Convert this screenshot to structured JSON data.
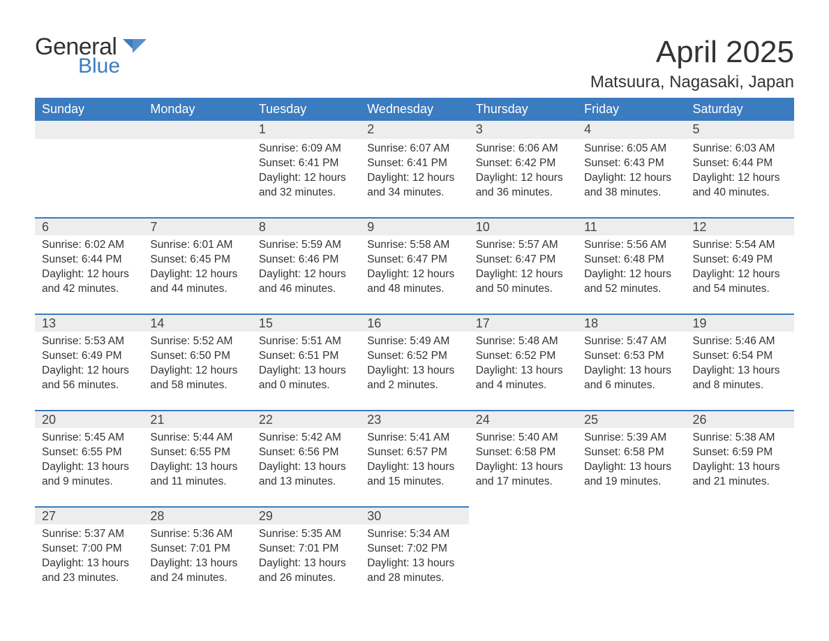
{
  "logo": {
    "general": "General",
    "blue": "Blue",
    "chevron_color": "#3b7bbf"
  },
  "title": "April 2025",
  "location": "Matsuura, Nagasaki, Japan",
  "colors": {
    "header_bg": "#3b7bbf",
    "header_text": "#ffffff",
    "daynum_bg": "#ededed",
    "daynum_border": "#3b7bbf",
    "body_bg": "#ffffff",
    "text": "#333333"
  },
  "weekdays": [
    "Sunday",
    "Monday",
    "Tuesday",
    "Wednesday",
    "Thursday",
    "Friday",
    "Saturday"
  ],
  "weeks": [
    [
      {
        "day": "",
        "sunrise": "",
        "sunset": "",
        "daylight": ""
      },
      {
        "day": "",
        "sunrise": "",
        "sunset": "",
        "daylight": ""
      },
      {
        "day": "1",
        "sunrise": "Sunrise: 6:09 AM",
        "sunset": "Sunset: 6:41 PM",
        "daylight": "Daylight: 12 hours and 32 minutes."
      },
      {
        "day": "2",
        "sunrise": "Sunrise: 6:07 AM",
        "sunset": "Sunset: 6:41 PM",
        "daylight": "Daylight: 12 hours and 34 minutes."
      },
      {
        "day": "3",
        "sunrise": "Sunrise: 6:06 AM",
        "sunset": "Sunset: 6:42 PM",
        "daylight": "Daylight: 12 hours and 36 minutes."
      },
      {
        "day": "4",
        "sunrise": "Sunrise: 6:05 AM",
        "sunset": "Sunset: 6:43 PM",
        "daylight": "Daylight: 12 hours and 38 minutes."
      },
      {
        "day": "5",
        "sunrise": "Sunrise: 6:03 AM",
        "sunset": "Sunset: 6:44 PM",
        "daylight": "Daylight: 12 hours and 40 minutes."
      }
    ],
    [
      {
        "day": "6",
        "sunrise": "Sunrise: 6:02 AM",
        "sunset": "Sunset: 6:44 PM",
        "daylight": "Daylight: 12 hours and 42 minutes."
      },
      {
        "day": "7",
        "sunrise": "Sunrise: 6:01 AM",
        "sunset": "Sunset: 6:45 PM",
        "daylight": "Daylight: 12 hours and 44 minutes."
      },
      {
        "day": "8",
        "sunrise": "Sunrise: 5:59 AM",
        "sunset": "Sunset: 6:46 PM",
        "daylight": "Daylight: 12 hours and 46 minutes."
      },
      {
        "day": "9",
        "sunrise": "Sunrise: 5:58 AM",
        "sunset": "Sunset: 6:47 PM",
        "daylight": "Daylight: 12 hours and 48 minutes."
      },
      {
        "day": "10",
        "sunrise": "Sunrise: 5:57 AM",
        "sunset": "Sunset: 6:47 PM",
        "daylight": "Daylight: 12 hours and 50 minutes."
      },
      {
        "day": "11",
        "sunrise": "Sunrise: 5:56 AM",
        "sunset": "Sunset: 6:48 PM",
        "daylight": "Daylight: 12 hours and 52 minutes."
      },
      {
        "day": "12",
        "sunrise": "Sunrise: 5:54 AM",
        "sunset": "Sunset: 6:49 PM",
        "daylight": "Daylight: 12 hours and 54 minutes."
      }
    ],
    [
      {
        "day": "13",
        "sunrise": "Sunrise: 5:53 AM",
        "sunset": "Sunset: 6:49 PM",
        "daylight": "Daylight: 12 hours and 56 minutes."
      },
      {
        "day": "14",
        "sunrise": "Sunrise: 5:52 AM",
        "sunset": "Sunset: 6:50 PM",
        "daylight": "Daylight: 12 hours and 58 minutes."
      },
      {
        "day": "15",
        "sunrise": "Sunrise: 5:51 AM",
        "sunset": "Sunset: 6:51 PM",
        "daylight": "Daylight: 13 hours and 0 minutes."
      },
      {
        "day": "16",
        "sunrise": "Sunrise: 5:49 AM",
        "sunset": "Sunset: 6:52 PM",
        "daylight": "Daylight: 13 hours and 2 minutes."
      },
      {
        "day": "17",
        "sunrise": "Sunrise: 5:48 AM",
        "sunset": "Sunset: 6:52 PM",
        "daylight": "Daylight: 13 hours and 4 minutes."
      },
      {
        "day": "18",
        "sunrise": "Sunrise: 5:47 AM",
        "sunset": "Sunset: 6:53 PM",
        "daylight": "Daylight: 13 hours and 6 minutes."
      },
      {
        "day": "19",
        "sunrise": "Sunrise: 5:46 AM",
        "sunset": "Sunset: 6:54 PM",
        "daylight": "Daylight: 13 hours and 8 minutes."
      }
    ],
    [
      {
        "day": "20",
        "sunrise": "Sunrise: 5:45 AM",
        "sunset": "Sunset: 6:55 PM",
        "daylight": "Daylight: 13 hours and 9 minutes."
      },
      {
        "day": "21",
        "sunrise": "Sunrise: 5:44 AM",
        "sunset": "Sunset: 6:55 PM",
        "daylight": "Daylight: 13 hours and 11 minutes."
      },
      {
        "day": "22",
        "sunrise": "Sunrise: 5:42 AM",
        "sunset": "Sunset: 6:56 PM",
        "daylight": "Daylight: 13 hours and 13 minutes."
      },
      {
        "day": "23",
        "sunrise": "Sunrise: 5:41 AM",
        "sunset": "Sunset: 6:57 PM",
        "daylight": "Daylight: 13 hours and 15 minutes."
      },
      {
        "day": "24",
        "sunrise": "Sunrise: 5:40 AM",
        "sunset": "Sunset: 6:58 PM",
        "daylight": "Daylight: 13 hours and 17 minutes."
      },
      {
        "day": "25",
        "sunrise": "Sunrise: 5:39 AM",
        "sunset": "Sunset: 6:58 PM",
        "daylight": "Daylight: 13 hours and 19 minutes."
      },
      {
        "day": "26",
        "sunrise": "Sunrise: 5:38 AM",
        "sunset": "Sunset: 6:59 PM",
        "daylight": "Daylight: 13 hours and 21 minutes."
      }
    ],
    [
      {
        "day": "27",
        "sunrise": "Sunrise: 5:37 AM",
        "sunset": "Sunset: 7:00 PM",
        "daylight": "Daylight: 13 hours and 23 minutes."
      },
      {
        "day": "28",
        "sunrise": "Sunrise: 5:36 AM",
        "sunset": "Sunset: 7:01 PM",
        "daylight": "Daylight: 13 hours and 24 minutes."
      },
      {
        "day": "29",
        "sunrise": "Sunrise: 5:35 AM",
        "sunset": "Sunset: 7:01 PM",
        "daylight": "Daylight: 13 hours and 26 minutes."
      },
      {
        "day": "30",
        "sunrise": "Sunrise: 5:34 AM",
        "sunset": "Sunset: 7:02 PM",
        "daylight": "Daylight: 13 hours and 28 minutes."
      },
      {
        "day": "",
        "sunrise": "",
        "sunset": "",
        "daylight": ""
      },
      {
        "day": "",
        "sunrise": "",
        "sunset": "",
        "daylight": ""
      },
      {
        "day": "",
        "sunrise": "",
        "sunset": "",
        "daylight": ""
      }
    ]
  ]
}
